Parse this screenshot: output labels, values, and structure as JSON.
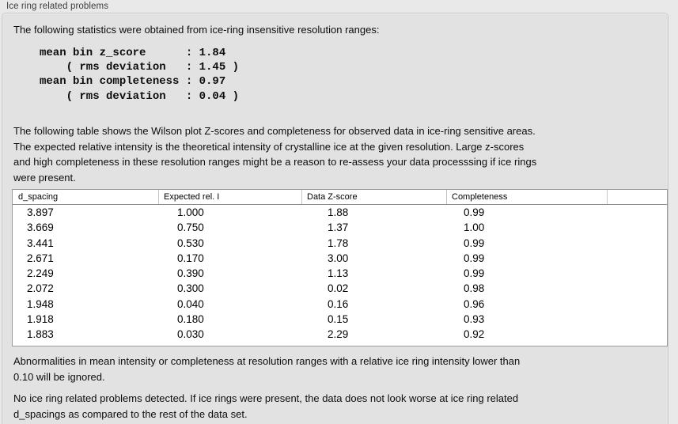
{
  "panel": {
    "title": "Ice ring related problems"
  },
  "intro": "The following statistics were obtained from ice-ring insensitive resolution ranges:",
  "stats_block": {
    "lines": [
      "mean bin z_score      : 1.84",
      "    ( rms deviation   : 1.45 )",
      "mean bin completeness : 0.97",
      "    ( rms deviation   : 0.04 )"
    ],
    "mean_bin_z_score": "1.84",
    "z_score_rms_deviation": "1.45",
    "mean_bin_completeness": "0.97",
    "completeness_rms_deviation": "0.04"
  },
  "description_lines": [
    "The following table shows the Wilson plot Z-scores and completeness for observed data in ice-ring sensitive areas.",
    "The expected relative intensity is the theoretical intensity of crystalline ice at the given resolution. Large z-scores",
    "and high completeness in these resolution ranges might be a reason to re-assess your data processsing if ice rings",
    "were present."
  ],
  "table": {
    "columns": [
      "d_spacing",
      "Expected rel. I",
      "Data Z-score",
      "Completeness"
    ],
    "rows": [
      [
        "3.897",
        "1.000",
        "1.88",
        "0.99"
      ],
      [
        "3.669",
        "0.750",
        "1.37",
        "1.00"
      ],
      [
        "3.441",
        "0.530",
        "1.78",
        "0.99"
      ],
      [
        "2.671",
        "0.170",
        "3.00",
        "0.99"
      ],
      [
        "2.249",
        "0.390",
        "1.13",
        "0.99"
      ],
      [
        "2.072",
        "0.300",
        "0.02",
        "0.98"
      ],
      [
        "1.948",
        "0.040",
        "0.16",
        "0.96"
      ],
      [
        "1.918",
        "0.180",
        "0.15",
        "0.93"
      ],
      [
        "1.883",
        "0.030",
        "2.29",
        "0.92"
      ]
    ]
  },
  "note_lines": [
    "Abnormalities in mean intensity or completeness at resolution ranges with a relative ice ring intensity lower than",
    "0.10 will be ignored."
  ],
  "conclusion_lines": [
    "No ice ring related problems detected. If ice rings were present, the data does not look worse at ice ring related",
    "d_spacings as compared to the rest of the data set."
  ],
  "colors": {
    "page_bg": "#e9e9e9",
    "panel_bg": "#e2e2e2",
    "panel_border": "#c9c9c9",
    "table_bg": "#ffffff",
    "table_border": "#9b9b9b",
    "header_rule": "#8b8b8b",
    "header_separator": "#c6c6c6",
    "text": "#0d0d0d"
  }
}
